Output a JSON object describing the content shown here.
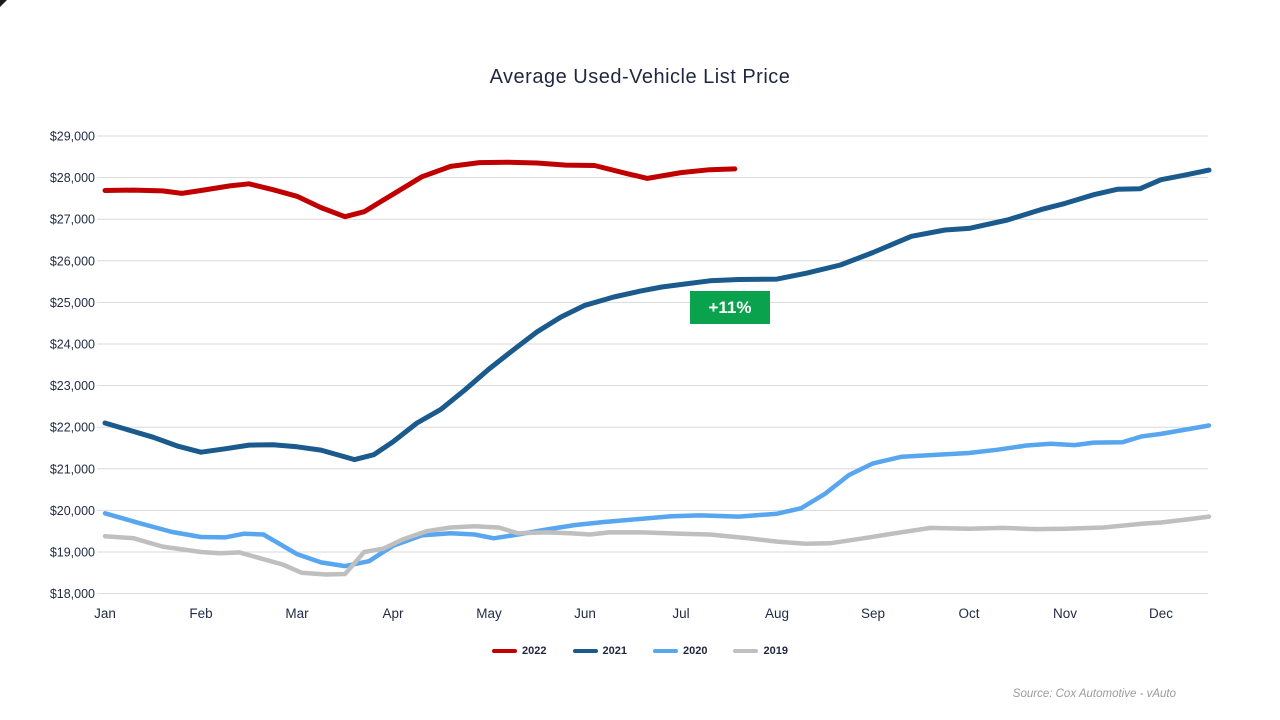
{
  "chart_data": {
    "type": "line",
    "title": "Average Used-Vehicle List Price",
    "xlabel": "",
    "ylabel": "",
    "x_categories": [
      "Jan",
      "Feb",
      "Mar",
      "Apr",
      "May",
      "Jun",
      "Jul",
      "Aug",
      "Sep",
      "Oct",
      "Nov",
      "Dec"
    ],
    "y_axis": {
      "min": 18000,
      "max": 29000,
      "step": 1000,
      "tick_labels": [
        "$18,000",
        "$19,000",
        "$20,000",
        "$21,000",
        "$22,000",
        "$23,000",
        "$24,000",
        "$25,000",
        "$26,000",
        "$27,000",
        "$28,000",
        "$29,000"
      ]
    },
    "grid": true,
    "legend_position": "bottom",
    "series": [
      {
        "name": "2022",
        "color": "#C00000",
        "points": [
          [
            0,
            27690
          ],
          [
            0.3,
            27700
          ],
          [
            0.6,
            27680
          ],
          [
            0.8,
            27620
          ],
          [
            1,
            27690
          ],
          [
            1.3,
            27800
          ],
          [
            1.5,
            27850
          ],
          [
            1.75,
            27710
          ],
          [
            2,
            27550
          ],
          [
            2.25,
            27280
          ],
          [
            2.5,
            27060
          ],
          [
            2.7,
            27180
          ],
          [
            3,
            27600
          ],
          [
            3.3,
            28020
          ],
          [
            3.6,
            28270
          ],
          [
            3.9,
            28360
          ],
          [
            4.2,
            28370
          ],
          [
            4.5,
            28350
          ],
          [
            4.8,
            28300
          ],
          [
            5.1,
            28290
          ],
          [
            5.45,
            28090
          ],
          [
            5.65,
            27980
          ],
          [
            6,
            28120
          ],
          [
            6.3,
            28190
          ],
          [
            6.56,
            28210
          ]
        ]
      },
      {
        "name": "2021",
        "color": "#1A5A8C",
        "points": [
          [
            0,
            22100
          ],
          [
            0.25,
            21930
          ],
          [
            0.5,
            21760
          ],
          [
            0.75,
            21550
          ],
          [
            1,
            21400
          ],
          [
            1.25,
            21480
          ],
          [
            1.5,
            21570
          ],
          [
            1.75,
            21580
          ],
          [
            2,
            21530
          ],
          [
            2.25,
            21450
          ],
          [
            2.6,
            21220
          ],
          [
            2.8,
            21340
          ],
          [
            3,
            21650
          ],
          [
            3.25,
            22100
          ],
          [
            3.5,
            22430
          ],
          [
            3.75,
            22900
          ],
          [
            4,
            23400
          ],
          [
            4.25,
            23850
          ],
          [
            4.5,
            24290
          ],
          [
            4.75,
            24650
          ],
          [
            5,
            24930
          ],
          [
            5.3,
            25130
          ],
          [
            5.57,
            25270
          ],
          [
            5.8,
            25370
          ],
          [
            6,
            25430
          ],
          [
            6.3,
            25520
          ],
          [
            6.6,
            25550
          ],
          [
            7,
            25560
          ],
          [
            7.3,
            25700
          ],
          [
            7.66,
            25900
          ],
          [
            8,
            26200
          ],
          [
            8.4,
            26590
          ],
          [
            8.75,
            26740
          ],
          [
            9,
            26780
          ],
          [
            9.4,
            26980
          ],
          [
            9.75,
            27230
          ],
          [
            10,
            27380
          ],
          [
            10.3,
            27590
          ],
          [
            10.55,
            27720
          ],
          [
            10.78,
            27730
          ],
          [
            11,
            27950
          ],
          [
            11.25,
            28060
          ],
          [
            11.5,
            28180
          ]
        ]
      },
      {
        "name": "2020",
        "color": "#58A6EF",
        "points": [
          [
            0,
            19930
          ],
          [
            0.35,
            19700
          ],
          [
            0.7,
            19480
          ],
          [
            1,
            19360
          ],
          [
            1.25,
            19350
          ],
          [
            1.45,
            19440
          ],
          [
            1.65,
            19420
          ],
          [
            2,
            18950
          ],
          [
            2.25,
            18750
          ],
          [
            2.5,
            18660
          ],
          [
            2.75,
            18780
          ],
          [
            3,
            19150
          ],
          [
            3.3,
            19400
          ],
          [
            3.6,
            19450
          ],
          [
            3.85,
            19420
          ],
          [
            4.05,
            19330
          ],
          [
            4.3,
            19420
          ],
          [
            4.6,
            19540
          ],
          [
            4.9,
            19650
          ],
          [
            5.2,
            19720
          ],
          [
            5.55,
            19790
          ],
          [
            5.9,
            19860
          ],
          [
            6.2,
            19880
          ],
          [
            6.6,
            19850
          ],
          [
            7,
            19920
          ],
          [
            7.25,
            20050
          ],
          [
            7.5,
            20400
          ],
          [
            7.75,
            20850
          ],
          [
            8,
            21130
          ],
          [
            8.3,
            21290
          ],
          [
            8.6,
            21330
          ],
          [
            9,
            21380
          ],
          [
            9.3,
            21460
          ],
          [
            9.6,
            21560
          ],
          [
            9.85,
            21600
          ],
          [
            10.1,
            21570
          ],
          [
            10.3,
            21630
          ],
          [
            10.6,
            21640
          ],
          [
            10.8,
            21780
          ],
          [
            11,
            21840
          ],
          [
            11.3,
            21960
          ],
          [
            11.5,
            22040
          ]
        ]
      },
      {
        "name": "2019",
        "color": "#BFBFBF",
        "points": [
          [
            0,
            19380
          ],
          [
            0.3,
            19330
          ],
          [
            0.6,
            19130
          ],
          [
            1,
            19000
          ],
          [
            1.2,
            18970
          ],
          [
            1.4,
            18990
          ],
          [
            1.6,
            18860
          ],
          [
            1.85,
            18700
          ],
          [
            2.05,
            18500
          ],
          [
            2.3,
            18460
          ],
          [
            2.5,
            18470
          ],
          [
            2.7,
            19000
          ],
          [
            2.9,
            19080
          ],
          [
            3.1,
            19300
          ],
          [
            3.35,
            19500
          ],
          [
            3.6,
            19590
          ],
          [
            3.85,
            19620
          ],
          [
            4.1,
            19590
          ],
          [
            4.3,
            19450
          ],
          [
            4.6,
            19470
          ],
          [
            4.85,
            19450
          ],
          [
            5.05,
            19420
          ],
          [
            5.25,
            19470
          ],
          [
            5.6,
            19470
          ],
          [
            6,
            19440
          ],
          [
            6.3,
            19420
          ],
          [
            6.7,
            19330
          ],
          [
            7,
            19250
          ],
          [
            7.3,
            19200
          ],
          [
            7.55,
            19210
          ],
          [
            7.9,
            19330
          ],
          [
            8.2,
            19440
          ],
          [
            8.6,
            19580
          ],
          [
            9,
            19560
          ],
          [
            9.35,
            19580
          ],
          [
            9.7,
            19550
          ],
          [
            10,
            19560
          ],
          [
            10.4,
            19590
          ],
          [
            10.8,
            19680
          ],
          [
            11,
            19710
          ],
          [
            11.3,
            19790
          ],
          [
            11.5,
            19850
          ]
        ]
      }
    ],
    "annotation": {
      "text": "+11%",
      "bg_color": "#0BA24E",
      "text_color": "#FFFFFF"
    },
    "source_note": "Source: Cox Automotive - vAuto"
  }
}
